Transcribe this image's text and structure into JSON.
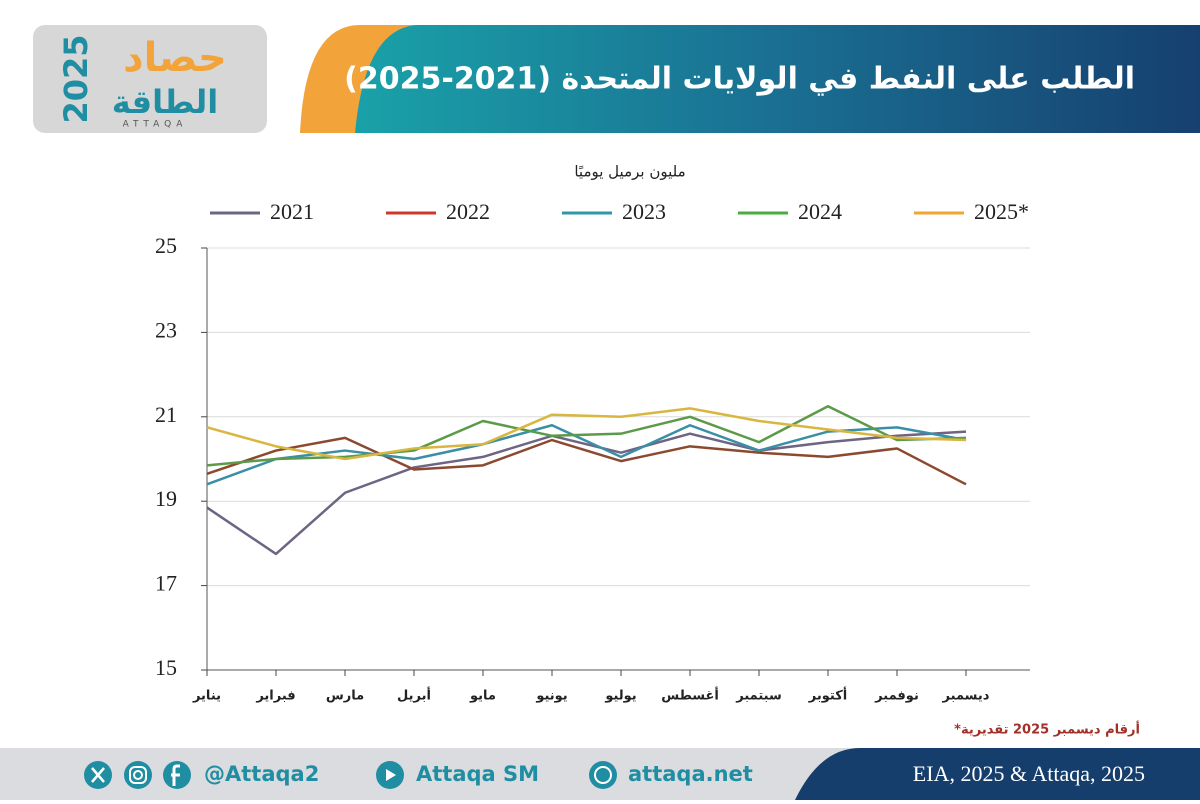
{
  "header": {
    "title": "الطلب على النفط في الولايات المتحدة (2021-2025)",
    "logo": {
      "word": "حصاد",
      "year": "2025",
      "brand": "الطاقة",
      "latin": "ATTAQA"
    }
  },
  "chart_data": {
    "type": "line",
    "y_label": "مليون برميل يوميًا",
    "categories": [
      "يناير",
      "فبراير",
      "مارس",
      "أبريل",
      "مايو",
      "يونيو",
      "يوليو",
      "أغسطس",
      "سبتمبر",
      "أكتوبر",
      "نوفمبر",
      "ديسمبر"
    ],
    "series": [
      {
        "name": "2021",
        "color": "#6e6483",
        "values": [
          18.85,
          17.75,
          19.2,
          19.8,
          20.05,
          20.55,
          20.15,
          20.6,
          20.2,
          20.4,
          20.55,
          20.65
        ]
      },
      {
        "name": "2022",
        "color": "#8b4a2f",
        "values": [
          19.65,
          20.2,
          20.5,
          19.75,
          19.85,
          20.45,
          19.95,
          20.3,
          20.15,
          20.05,
          20.25,
          19.4
        ]
      },
      {
        "name": "2023",
        "color": "#3a8fa6",
        "values": [
          19.4,
          20.0,
          20.2,
          20.0,
          20.35,
          20.8,
          20.05,
          20.8,
          20.2,
          20.65,
          20.75,
          20.45
        ]
      },
      {
        "name": "2024",
        "color": "#5c9a4a",
        "values": [
          19.85,
          20.0,
          20.05,
          20.2,
          20.9,
          20.55,
          20.6,
          21.0,
          20.4,
          21.25,
          20.45,
          20.5
        ]
      },
      {
        "name": "2025*",
        "color": "#d8b640",
        "values": [
          20.75,
          20.3,
          20.0,
          20.25,
          20.35,
          21.05,
          21.0,
          21.2,
          20.9,
          20.7,
          20.5,
          20.45
        ]
      }
    ],
    "legend_colors": [
      "#6e6483",
      "#d1352b",
      "#2e98a8",
      "#4aad3e",
      "#f0a630"
    ],
    "ylim": [
      15,
      25
    ],
    "yticks": [
      15,
      17,
      19,
      21,
      23,
      25
    ],
    "grid": true,
    "note": "*أرقام ديسمبر 2025 تقديرية"
  },
  "footer": {
    "handle": "@Attaqa2",
    "youtube": "Attaqa SM",
    "site": "attaqa.net",
    "source": "EIA, 2025 & Attaqa, 2025"
  }
}
